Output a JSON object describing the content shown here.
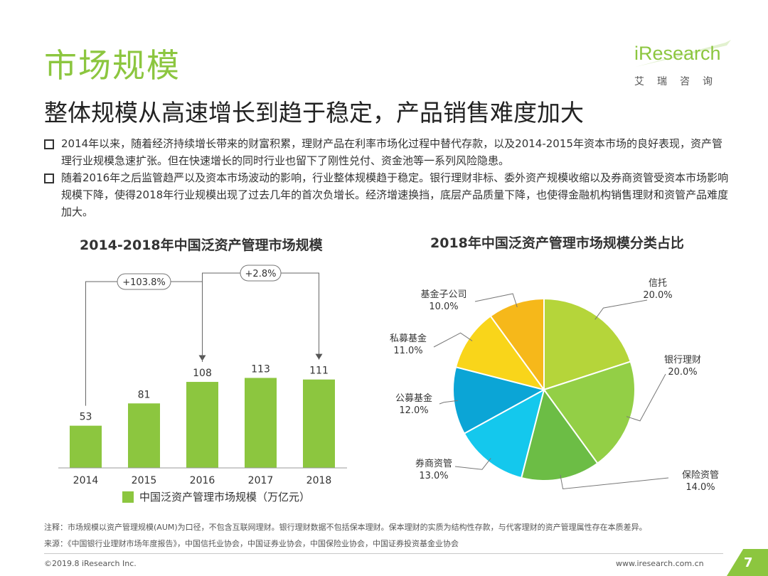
{
  "header": {
    "heading": "市场规模",
    "subtitle": "整体规模从高速增长到趋于稳定，产品销售难度加大"
  },
  "logo": {
    "brand": "iResearch",
    "sub": "艾瑞咨询"
  },
  "bullets": [
    "2014年以来，随着经济持续增长带来的财富积累，理财产品在利率市场化过程中替代存款，以及2014-2015年资本市场的良好表现，资产管理行业规模急速扩张。但在快速增长的同时行业也留下了刚性兑付、资金池等一系列风险隐患。",
    "随着2016年之后监管趋严以及资本市场波动的影响，行业整体规模趋于稳定。银行理财非标、委外资产规模收缩以及券商资管受资本市场影响规模下降，使得2018年行业规模出现了过去几年的首次负增长。经济增速换挡，底层产品质量下降，也使得金融机构销售理财和资管产品难度加大。"
  ],
  "chart_data": [
    {
      "type": "bar",
      "title": "2014-2018年中国泛资产管理市场规模",
      "categories": [
        "2014",
        "2015",
        "2016",
        "2017",
        "2018"
      ],
      "series": [
        {
          "name": "中国泛资产管理市场规模（万亿元）",
          "values": [
            53,
            81,
            108,
            113,
            111
          ]
        }
      ],
      "annotations": [
        {
          "from": "2014",
          "to": "2016",
          "text": "+103.8%"
        },
        {
          "from": "2016",
          "to": "2018",
          "text": "+2.8%"
        }
      ],
      "color": "#8cc63f",
      "legend": "bottom",
      "grid": false
    },
    {
      "type": "pie",
      "title": "2018年中国泛资产管理市场规模分类占比",
      "slices": [
        {
          "label": "信托",
          "value": 20.0,
          "pct": "20.0%",
          "color": "#b5d53a"
        },
        {
          "label": "银行理财",
          "value": 20.0,
          "pct": "20.0%",
          "color": "#93cf46"
        },
        {
          "label": "保险资管",
          "value": 14.0,
          "pct": "14.0%",
          "color": "#6cbd45"
        },
        {
          "label": "券商资管",
          "value": 13.0,
          "pct": "13.0%",
          "color": "#14c8ed"
        },
        {
          "label": "公募基金",
          "value": 12.0,
          "pct": "12.0%",
          "color": "#0ba5d6"
        },
        {
          "label": "私募基金",
          "value": 11.0,
          "pct": "11.0%",
          "color": "#f9d51a"
        },
        {
          "label": "基金子公司",
          "value": 10.0,
          "pct": "10.0%",
          "color": "#f6b81a"
        }
      ]
    }
  ],
  "notes": {
    "note": "注释：市场规模以资产管理规模(AUM)为口径，不包含互联网理财。银行理财数据不包括保本理财。保本理财的实质为结构性存款，与代客理财的资产管理属性存在本质差异。",
    "source": "来源：《中国银行业理财市场年度报告》，中国信托业协会，中国证券业协会，中国保险业协会，中国证券投资基金业协会"
  },
  "footer": {
    "copyright": "©2019.8 iResearch Inc.",
    "website": "www.iresearch.com.cn",
    "page": "7"
  }
}
